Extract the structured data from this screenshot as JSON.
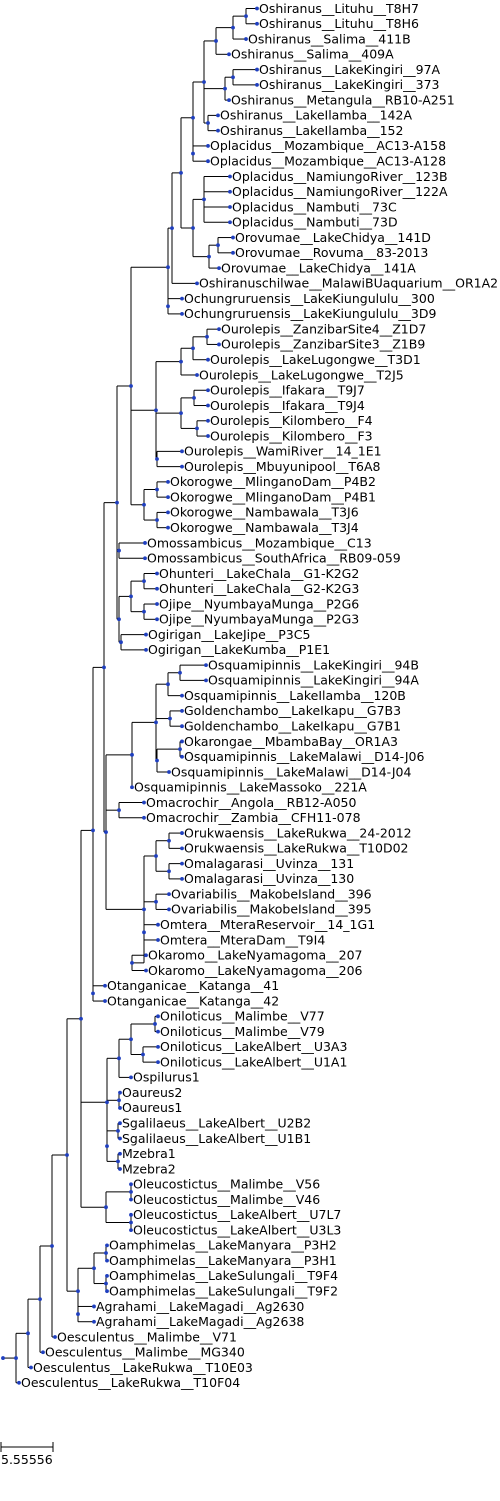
{
  "tree": {
    "line_color": "#000000",
    "node_color": "#1f3fbf",
    "tips": [
      "Oshiranus__Lituhu__T8H7",
      "Oshiranus__Lituhu__T8H6",
      "Oshiranus__Salima__411B",
      "Oshiranus__Salima__409A",
      "Oshiranus__LakeKingiri__97A",
      "Oshiranus__LakeKingiri__373",
      "Oshiranus__Metangula__RB10-A251",
      "Oshiranus__LakeIlamba__142A",
      "Oshiranus__LakeIlamba__152",
      "Oplacidus__Mozambique__AC13-A158",
      "Oplacidus__Mozambique__AC13-A128",
      "Oplacidus__NamiungoRiver__123B",
      "Oplacidus__NamiungoRiver__122A",
      "Oplacidus__Nambuti__73C",
      "Oplacidus__Nambuti__73D",
      "Orovumae__LakeChidya__141D",
      "Orovumae__Rovuma__83-2013",
      "Orovumae__LakeChidya__141A",
      "Oshiranuschilwae__MalawiBUaquarium__OR1A2",
      "Ochungruruensis__LakeKiungululu__300",
      "Ochungruruensis__LakeKiungululu__3D9",
      "Ourolepis__ZanzibarSite4__Z1D7",
      "Ourolepis__ZanzibarSite3__Z1B9",
      "Ourolepis__LakeLugongwe__T3D1",
      "Ourolepis__LakeLugongwe__T2J5",
      "Ourolepis__Ifakara__T9J7",
      "Ourolepis__Ifakara__T9J4",
      "Ourolepis__Kilombero__F4",
      "Ourolepis__Kilombero__F3",
      "Ourolepis__WamiRiver__14_1E1",
      "Ourolepis__Mbuyunipool__T6A8",
      "Okorogwe__MlinganoDam__P4B2",
      "Okorogwe__MlinganoDam__P4B1",
      "Okorogwe__Nambawala__T3J6",
      "Okorogwe__Nambawala__T3J4",
      "Omossambicus__Mozambique__C13",
      "Omossambicus__SouthAfrica__RB09-059",
      "Ohunteri__LakeChala__G1-K2G2",
      "Ohunteri__LakeChala__G2-K2G3",
      "Ojipe__NyumbayaMunga__P2G6",
      "Ojipe__NyumbayaMunga__P2G3",
      "Ogirigan__LakeJipe__P3C5",
      "Ogirigan__LakeKumba__P1E1",
      "Osquamipinnis__LakeKingiri__94B",
      "Osquamipinnis__LakeKingiri__94A",
      "Osquamipinnis__LakeIlamba__120B",
      "Goldenchambo__LakeIkapu__G7B3",
      "Goldenchambo__LakeIkapu__G7B1",
      "Okarongae__MbambaBay__OR1A3",
      "Osquamipinnis__LakeMalawi__D14-J06",
      "Osquamipinnis__LakeMalawi__D14-J04",
      "Osquamipinnis__LakeMassoko__221A",
      "Omacrochir__Angola__RB12-A050",
      "Omacrochir__Zambia__CFH11-078",
      "Orukwaensis__LakeRukwa__24-2012",
      "Orukwaensis__LakeRukwa__T10D02",
      "Omalagarasi__Uvinza__131",
      "Omalagarasi__Uvinza__130",
      "Ovariabilis__MakobeIsland__396",
      "Ovariabilis__MakobeIsland__395",
      "Omtera__MteraReservoir__14_1G1",
      "Omtera__MteraDam__T9I4",
      "Okaromo__LakeNyamagoma__207",
      "Okaromo__LakeNyamagoma__206",
      "Otanganicae__Katanga__41",
      "Otanganicae__Katanga__42",
      "Oniloticus__Malimbe__V77",
      "Oniloticus__Malimbe__V79",
      "Oniloticus__LakeAlbert__U3A3",
      "Oniloticus__LakeAlbert__U1A1",
      "Ospilurus1",
      "Oaureus2",
      "Oaureus1",
      "Sgalilaeus__LakeAlbert__U2B2",
      "Sgalilaeus__LakeAlbert__U1B1",
      "Mzebra1",
      "Mzebra2",
      "Oleucostictus__Malimbe__V56",
      "Oleucostictus__Malimbe__V46",
      "Oleucostictus__LakeAlbert__U7L7",
      "Oleucostictus__LakeAlbert__U3L3",
      "Oamphimelas__LakeManyara__P3H2",
      "Oamphimelas__LakeManyara__P3H1",
      "Oamphimelas__LakeSulungali__T9F4",
      "Oamphimelas__LakeSulungali__T9F2",
      "Agrahami__LakeMagadi__Ag2630",
      "Agrahami__LakeMagadi__Ag2638",
      "Oesculentus__Malimbe__V71",
      "Oesculentus__Malimbe__MG340",
      "Oesculentus__LakeRukwa__T10E03",
      "Oesculentus__LakeRukwa__T10F04"
    ],
    "scale_bar_label": "5.55556"
  }
}
